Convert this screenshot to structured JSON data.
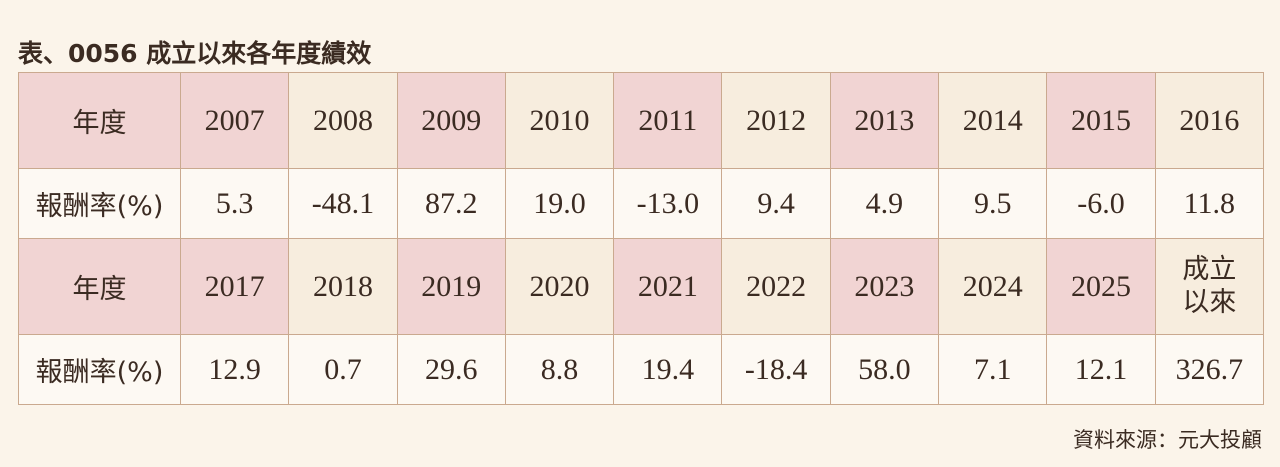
{
  "title": "表、0056 成立以來各年度績效",
  "table": {
    "rows": [
      [
        "年度",
        "2007",
        "2008",
        "2009",
        "2010",
        "2011",
        "2012",
        "2013",
        "2014",
        "2015",
        "2016"
      ],
      [
        "報酬率(%)",
        "5.3",
        "-48.1",
        "87.2",
        "19.0",
        "-13.0",
        "9.4",
        "4.9",
        "9.5",
        "-6.0",
        "11.8"
      ],
      [
        "年度",
        "2017",
        "2018",
        "2019",
        "2020",
        "2021",
        "2022",
        "2023",
        "2024",
        "2025",
        "成立以來"
      ],
      [
        "報酬率(%)",
        "12.9",
        "0.7",
        "29.6",
        "8.8",
        "19.4",
        "-18.4",
        "58.0",
        "7.1",
        "12.1",
        "326.7"
      ]
    ]
  },
  "source": "資料來源：元大投顧"
}
